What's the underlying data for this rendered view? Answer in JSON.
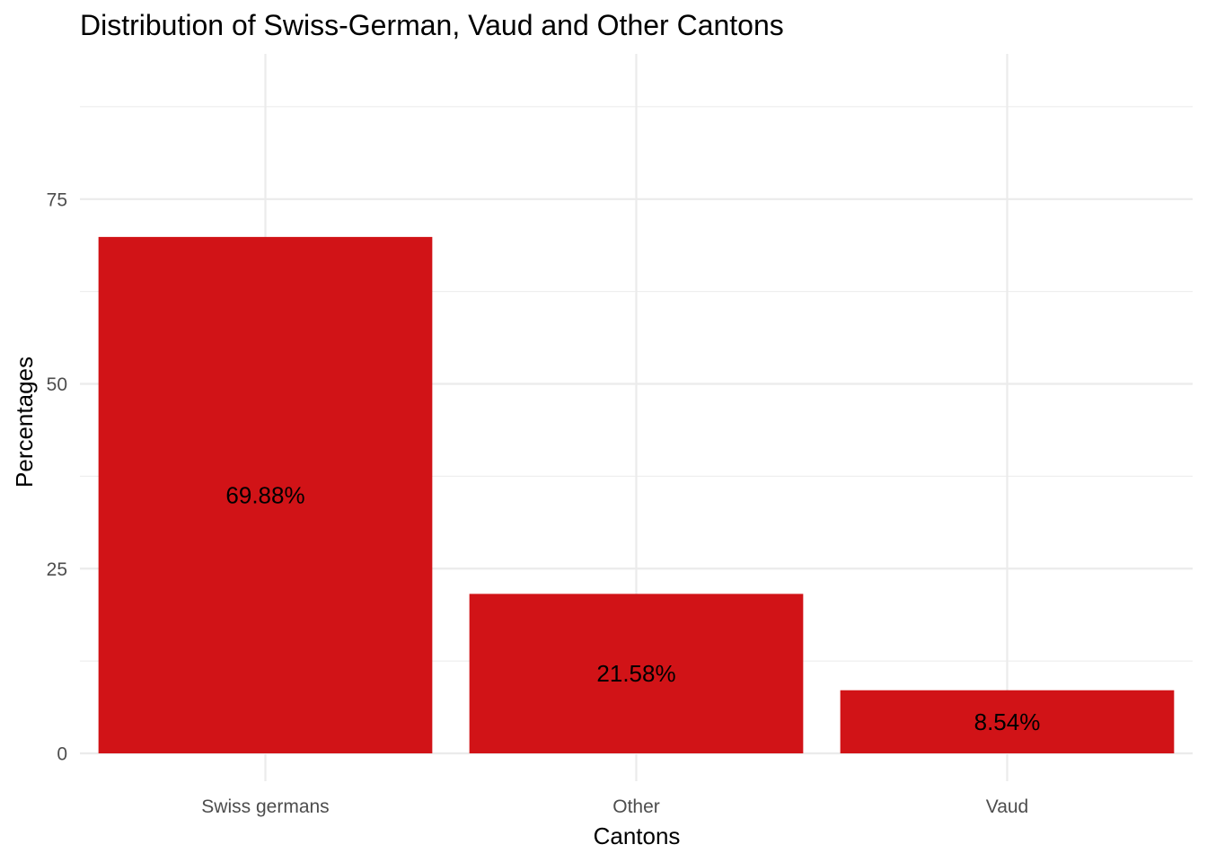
{
  "chart_data": {
    "type": "bar",
    "title": "Distribution of Swiss-German, Vaud and Other Cantons",
    "xlabel": "Cantons",
    "ylabel": "Percentages",
    "categories": [
      "Swiss germans",
      "Other",
      "Vaud"
    ],
    "values": [
      69.88,
      21.58,
      8.54
    ],
    "data_labels": [
      "69.88%",
      "21.58%",
      "8.54%"
    ],
    "ylim": [
      0,
      90
    ],
    "yticks": [
      0,
      25,
      50,
      75
    ],
    "ytick_labels": [
      "0",
      "25",
      "50",
      "75"
    ],
    "y_minor_ticks": [
      12.5,
      37.5,
      62.5,
      87.5
    ],
    "grid": true,
    "legend": "none",
    "colors": {
      "bar": "#d11317",
      "grid": "#ebebeb",
      "background": "#ffffff"
    }
  }
}
